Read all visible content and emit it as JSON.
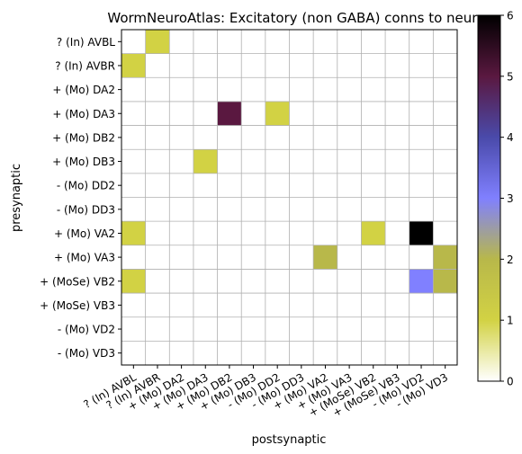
{
  "chart_data": {
    "type": "heatmap",
    "title": "WormNeuroAtlas: Excitatory (non GABA) conns to neurons",
    "xlabel": "postsynaptic",
    "ylabel": "presynaptic",
    "row_labels": [
      "? (In) AVBL",
      "? (In) AVBR",
      "+ (Mo) DA2",
      "+ (Mo) DA3",
      "+ (Mo) DB2",
      "+ (Mo) DB3",
      "- (Mo) DD2",
      "- (Mo) DD3",
      "+ (Mo) VA2",
      "+ (Mo) VA3",
      "+ (MoSe) VB2",
      "+ (MoSe) VB3",
      "- (Mo) VD2",
      "- (Mo) VD3"
    ],
    "col_labels": [
      "? (In) AVBL",
      "? (In) AVBR",
      "+ (Mo) DA2",
      "+ (Mo) DA3",
      "+ (Mo) DB2",
      "+ (Mo) DB3",
      "- (Mo) DD2",
      "- (Mo) DD3",
      "+ (Mo) VA2",
      "+ (Mo) VA3",
      "+ (MoSe) VB2",
      "+ (MoSe) VB3",
      "- (Mo) VD2",
      "- (Mo) VD3"
    ],
    "cells": [
      {
        "row": 0,
        "col": 1,
        "value": 1
      },
      {
        "row": 1,
        "col": 0,
        "value": 1
      },
      {
        "row": 3,
        "col": 4,
        "value": 5
      },
      {
        "row": 3,
        "col": 6,
        "value": 1
      },
      {
        "row": 5,
        "col": 3,
        "value": 1
      },
      {
        "row": 8,
        "col": 0,
        "value": 1
      },
      {
        "row": 8,
        "col": 10,
        "value": 1
      },
      {
        "row": 8,
        "col": 12,
        "value": 6
      },
      {
        "row": 9,
        "col": 8,
        "value": 2
      },
      {
        "row": 9,
        "col": 13,
        "value": 2
      },
      {
        "row": 10,
        "col": 0,
        "value": 1
      },
      {
        "row": 10,
        "col": 12,
        "value": 3
      },
      {
        "row": 10,
        "col": 13,
        "value": 2
      }
    ],
    "colorbar": {
      "min": 0,
      "max": 6,
      "ticks": [
        0,
        1,
        2,
        3,
        4,
        5,
        6
      ],
      "colormap": "gist_stern_r-like",
      "stops": [
        "#ffffff",
        "#d2d244",
        "#b8b84a",
        "#8080ff",
        "#4a4aaa",
        "#5a1840",
        "#000000"
      ]
    },
    "grid": true
  }
}
